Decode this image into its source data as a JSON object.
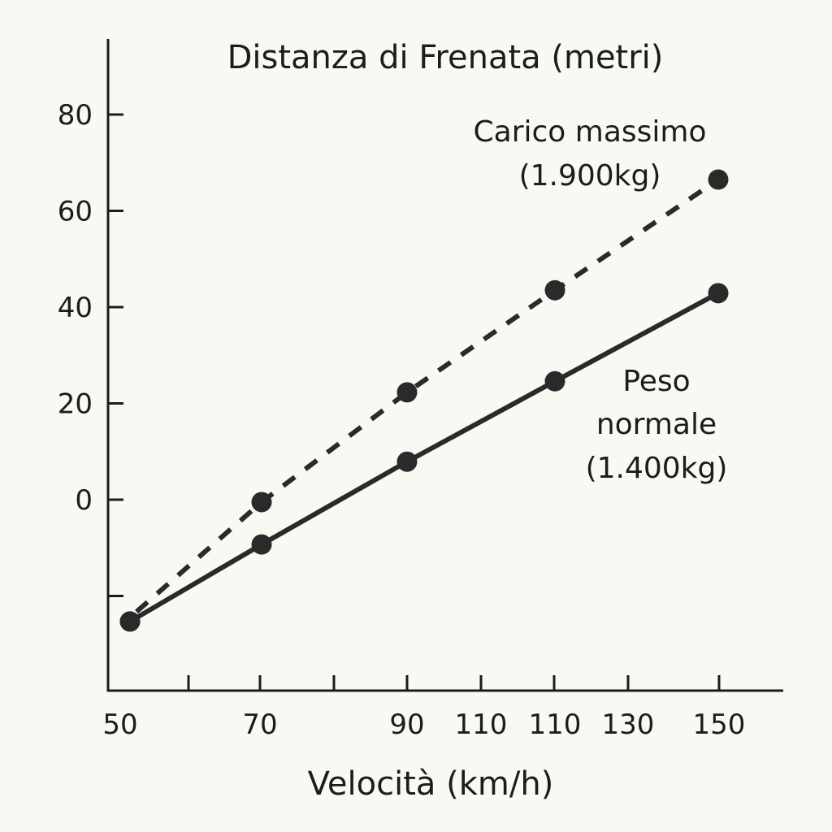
{
  "chart_data": {
    "type": "line",
    "title": "Distanza di Frenata (metri)",
    "xlabel": "Velocità (km/h)",
    "ylabel": "",
    "x_tick_labels": [
      "50",
      "70",
      "90",
      "110",
      "110",
      "130",
      "150"
    ],
    "y_tick_labels": [
      "80",
      "60",
      "40",
      "20",
      "0",
      ""
    ],
    "y_ticks": [
      80,
      60,
      40,
      20,
      0,
      -20
    ],
    "ylim": [
      -40,
      95
    ],
    "xlim": [
      45,
      160
    ],
    "grid": false,
    "legend": "inline annotations (right)",
    "series": [
      {
        "name": "Peso normale (1.400kg)",
        "style": "solid",
        "color": "#2a2a2a",
        "x": [
          50,
          70,
          90,
          110,
          150
        ],
        "y": [
          -25.3,
          -9.3,
          7.9,
          24.6,
          42.9
        ]
      },
      {
        "name": "Carico massimo (1.900kg)",
        "style": "dashed",
        "color": "#2a2a2a",
        "x": [
          50,
          70,
          90,
          110,
          150
        ],
        "y": [
          -25.3,
          -0.5,
          22.3,
          43.5,
          66.5
        ]
      }
    ],
    "annotations": [
      {
        "series": "Carico massimo (1.900kg)",
        "lines": [
          "Carico massimo",
          "(1.900kg)"
        ]
      },
      {
        "series": "Peso normale (1.400kg)",
        "lines": [
          "Peso",
          "normale",
          "(1.400kg)"
        ]
      }
    ]
  }
}
